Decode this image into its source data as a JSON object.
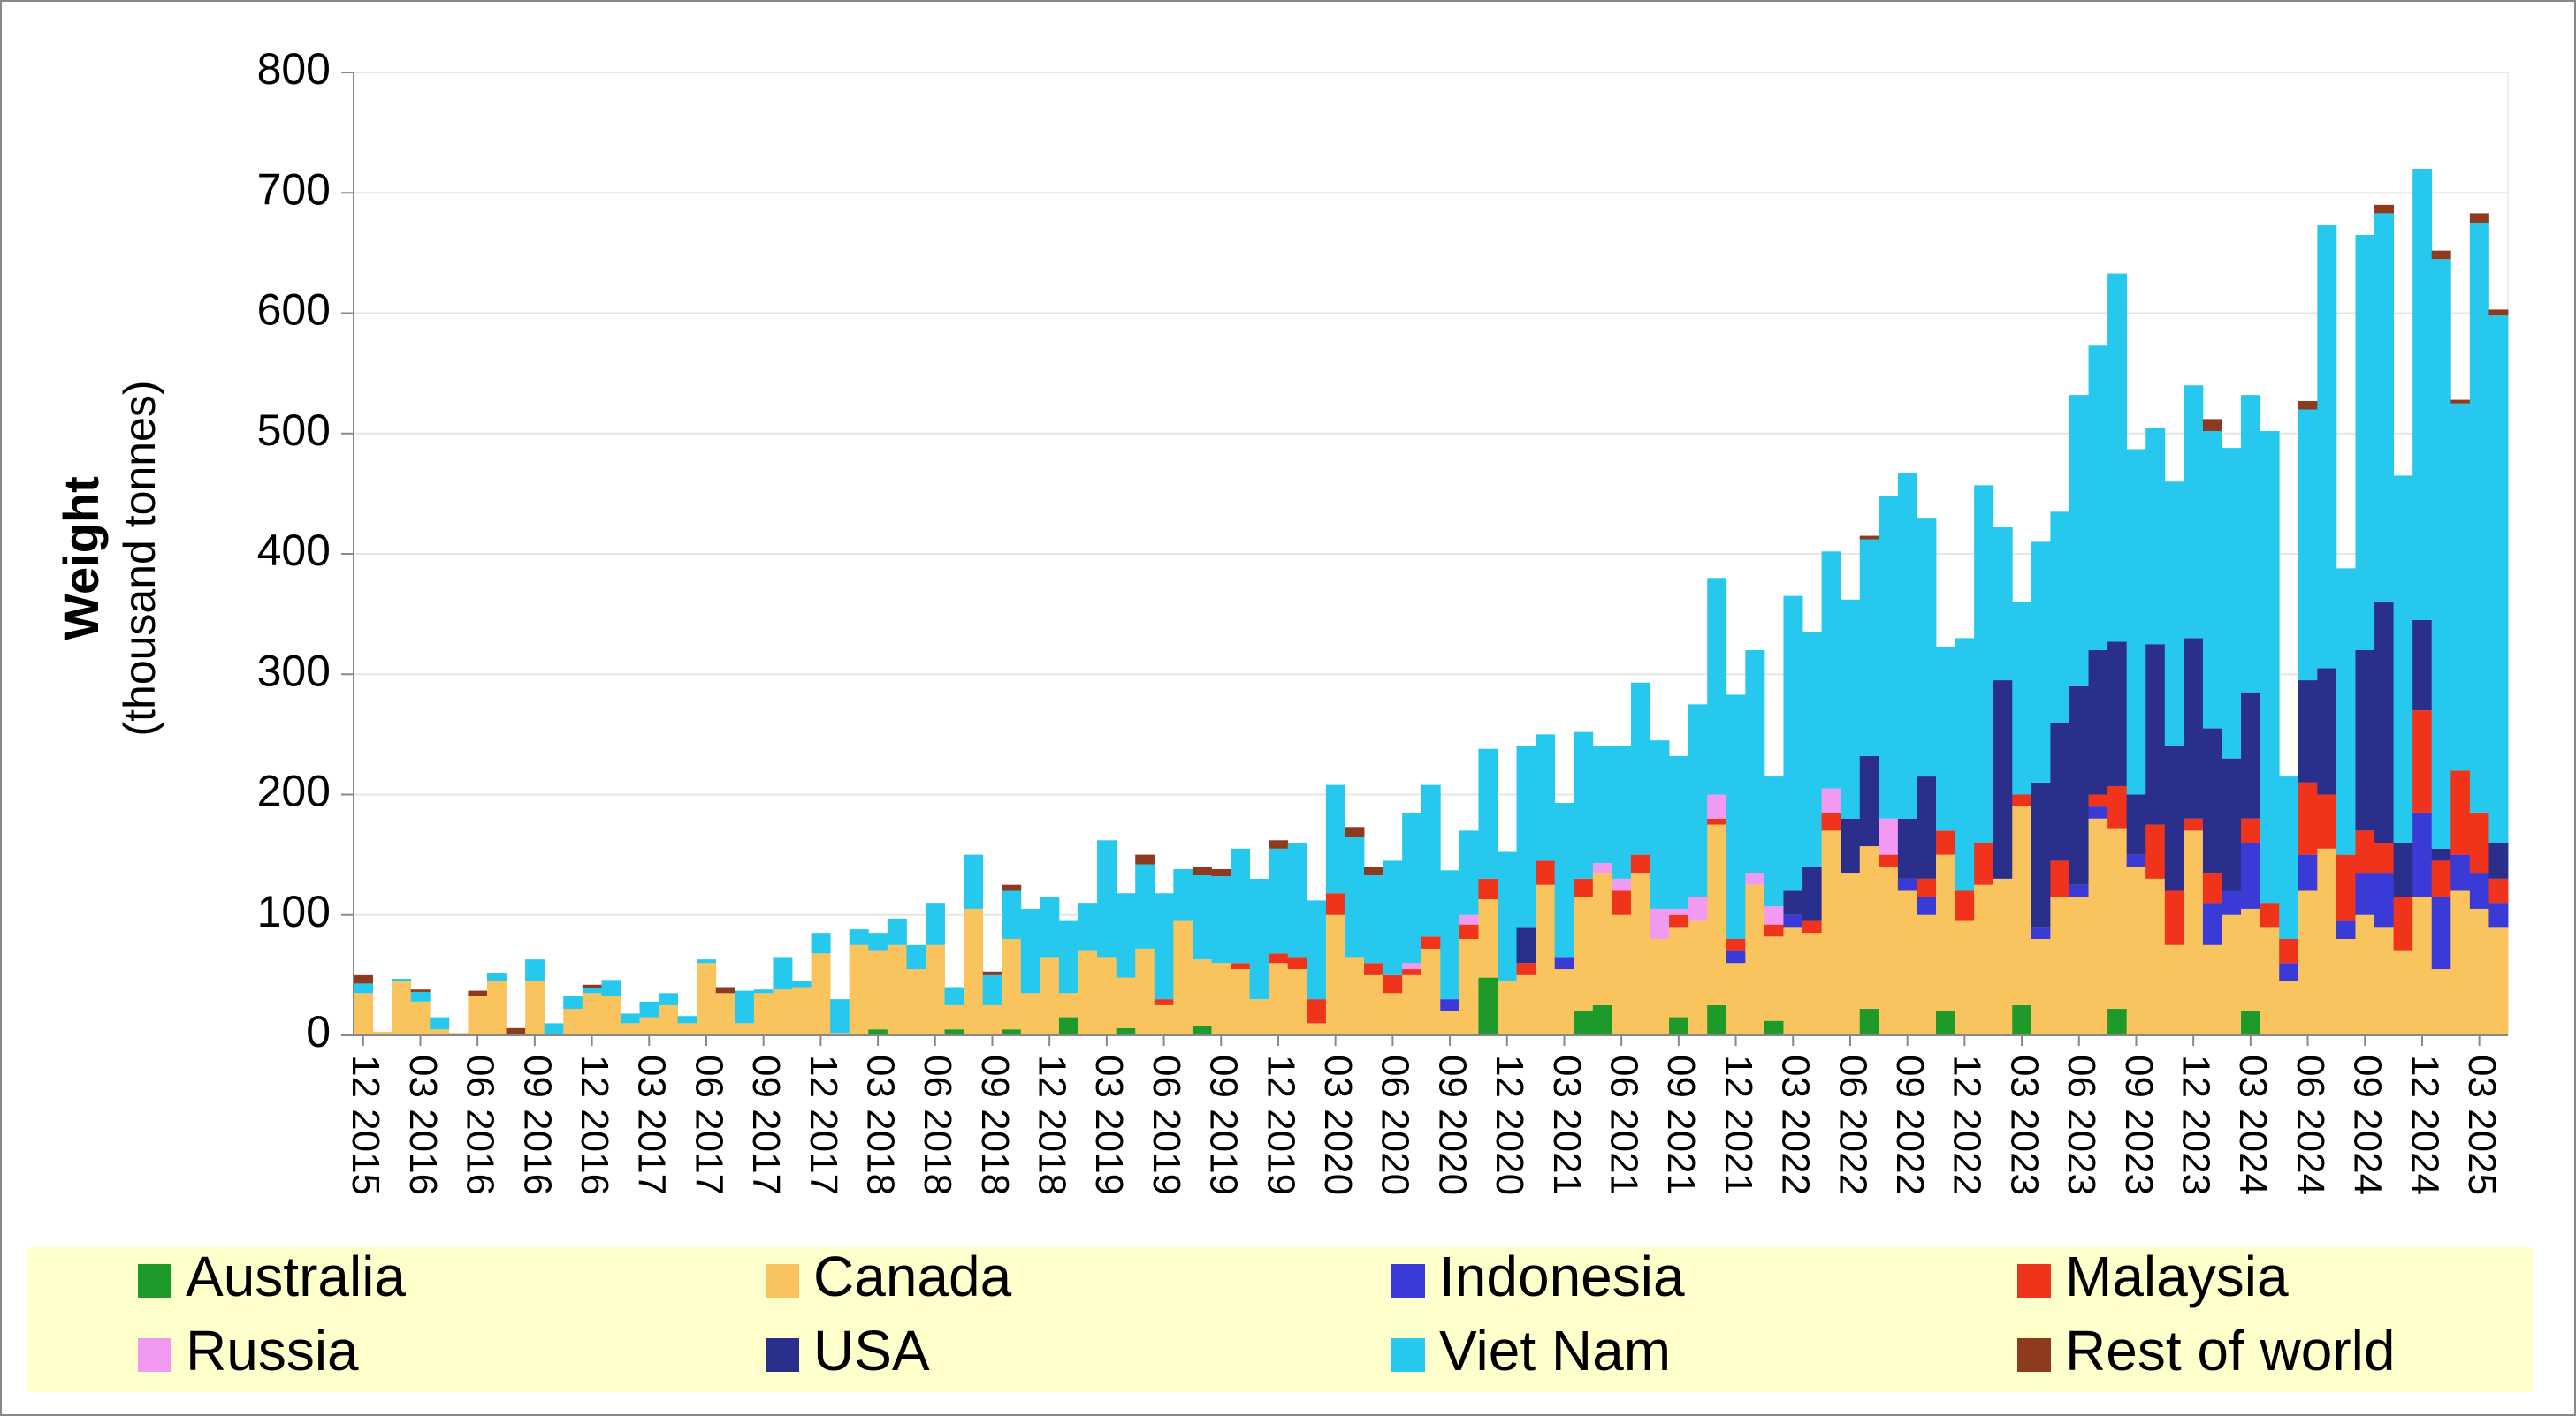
{
  "chart_data": {
    "type": "stacked_bar",
    "ylabel": "Weight",
    "ylabel_unit": "(thousand tonnes)",
    "ylim": [
      0,
      800
    ],
    "yticks": [
      0,
      100,
      200,
      300,
      400,
      500,
      600,
      700,
      800
    ],
    "grid": true,
    "legend": "bottom",
    "categories": [
      "12 2015",
      null,
      null,
      "03 2016",
      null,
      null,
      "06 2016",
      null,
      null,
      "09 2016",
      null,
      null,
      "12 2016",
      null,
      null,
      "03 2017",
      null,
      null,
      "06 2017",
      null,
      null,
      "09 2017",
      null,
      null,
      "12 2017",
      null,
      null,
      "03 2018",
      null,
      null,
      "06 2018",
      null,
      null,
      "09 2018",
      null,
      null,
      "12 2018",
      null,
      null,
      "03 2019",
      null,
      null,
      "06 2019",
      null,
      null,
      "09 2019",
      null,
      null,
      "12 2019",
      null,
      null,
      "03 2020",
      null,
      null,
      "06 2020",
      null,
      null,
      "09 2020",
      null,
      null,
      "12 2020",
      null,
      null,
      "03 2021",
      null,
      null,
      "06 2021",
      null,
      null,
      "09 2021",
      null,
      null,
      "12 2021",
      null,
      null,
      "03 2022",
      null,
      null,
      "06 2022",
      null,
      null,
      "09 2022",
      null,
      null,
      "12 2022",
      null,
      null,
      "03 2023",
      null,
      null,
      "06 2023",
      null,
      null,
      "09 2023",
      null,
      null,
      "12 2023",
      null,
      null,
      "03 2024",
      null,
      null,
      "06 2024",
      null,
      null,
      "09 2024",
      null,
      null,
      "12 2024",
      null,
      null,
      "03 2025",
      null
    ],
    "series": [
      {
        "name": "Australia",
        "color": "#1e9a2a",
        "values": [
          0,
          0,
          0,
          0,
          0,
          0,
          0,
          0,
          0,
          0,
          0,
          0,
          0,
          0,
          0,
          0,
          0,
          0,
          0,
          0,
          0,
          0,
          0,
          0,
          0,
          0,
          0,
          5,
          0,
          0,
          0,
          5,
          0,
          0,
          5,
          0,
          0,
          15,
          0,
          0,
          6,
          0,
          0,
          0,
          8,
          0,
          0,
          0,
          0,
          0,
          0,
          0,
          0,
          0,
          0,
          0,
          0,
          0,
          0,
          48,
          0,
          0,
          0,
          0,
          20,
          25,
          0,
          0,
          0,
          15,
          0,
          25,
          0,
          0,
          12,
          0,
          0,
          0,
          0,
          22,
          0,
          0,
          0,
          20,
          0,
          0,
          0,
          25,
          0,
          0,
          0,
          0,
          22,
          0,
          0,
          0,
          0,
          0,
          0,
          20,
          0,
          0,
          0,
          0,
          0,
          0,
          0,
          0,
          0,
          0,
          0,
          0,
          0
        ]
      },
      {
        "name": "Canada",
        "color": "#f9c45e",
        "values": [
          35,
          3,
          45,
          28,
          5,
          2,
          33,
          45,
          0,
          45,
          0,
          22,
          35,
          33,
          10,
          15,
          25,
          10,
          60,
          35,
          10,
          35,
          38,
          40,
          68,
          2,
          75,
          65,
          75,
          55,
          75,
          20,
          105,
          25,
          75,
          35,
          65,
          20,
          70,
          65,
          42,
          72,
          25,
          95,
          55,
          60,
          55,
          30,
          60,
          55,
          10,
          100,
          65,
          50,
          35,
          50,
          72,
          20,
          80,
          65,
          45,
          50,
          125,
          55,
          95,
          110,
          100,
          135,
          80,
          75,
          95,
          150,
          60,
          125,
          70,
          90,
          85,
          170,
          135,
          135,
          140,
          120,
          100,
          130,
          95,
          125,
          130,
          165,
          80,
          115,
          115,
          180,
          150,
          140,
          130,
          75,
          170,
          75,
          100,
          85,
          90,
          45,
          120,
          155,
          80,
          100,
          90,
          70,
          115,
          55,
          120,
          105,
          90
        ]
      },
      {
        "name": "Indonesia",
        "color": "#3a3ad6",
        "values": [
          0,
          0,
          0,
          0,
          0,
          0,
          0,
          0,
          0,
          0,
          0,
          0,
          0,
          0,
          0,
          0,
          0,
          0,
          0,
          0,
          0,
          0,
          0,
          0,
          0,
          0,
          0,
          0,
          0,
          0,
          0,
          0,
          0,
          0,
          0,
          0,
          0,
          0,
          0,
          0,
          0,
          0,
          0,
          0,
          0,
          0,
          0,
          0,
          0,
          0,
          0,
          0,
          0,
          0,
          0,
          0,
          0,
          10,
          0,
          0,
          0,
          0,
          0,
          10,
          0,
          0,
          0,
          0,
          0,
          0,
          0,
          0,
          10,
          0,
          0,
          10,
          0,
          0,
          0,
          0,
          0,
          10,
          15,
          0,
          0,
          0,
          0,
          0,
          10,
          0,
          10,
          10,
          0,
          10,
          0,
          0,
          0,
          35,
          20,
          55,
          0,
          15,
          30,
          0,
          15,
          35,
          45,
          0,
          70,
          60,
          30,
          30,
          20
        ]
      },
      {
        "name": "Malaysia",
        "color": "#f0341c",
        "values": [
          0,
          0,
          0,
          0,
          0,
          0,
          0,
          0,
          0,
          0,
          0,
          0,
          0,
          0,
          0,
          0,
          0,
          0,
          0,
          0,
          0,
          0,
          0,
          0,
          0,
          0,
          0,
          0,
          0,
          0,
          0,
          0,
          0,
          0,
          0,
          0,
          0,
          0,
          0,
          0,
          0,
          0,
          5,
          0,
          0,
          0,
          5,
          0,
          8,
          10,
          20,
          18,
          0,
          10,
          15,
          5,
          10,
          0,
          12,
          17,
          0,
          10,
          20,
          0,
          15,
          0,
          20,
          15,
          0,
          10,
          0,
          5,
          10,
          0,
          10,
          0,
          10,
          15,
          0,
          0,
          10,
          0,
          15,
          20,
          25,
          35,
          0,
          10,
          0,
          30,
          0,
          10,
          35,
          0,
          45,
          45,
          10,
          25,
          0,
          20,
          20,
          20,
          60,
          45,
          55,
          35,
          25,
          45,
          85,
          30,
          70,
          50,
          20
        ]
      },
      {
        "name": "Russia",
        "color": "#f29af2",
        "values": [
          0,
          0,
          0,
          0,
          0,
          0,
          0,
          0,
          0,
          0,
          0,
          0,
          0,
          0,
          0,
          0,
          0,
          0,
          0,
          0,
          0,
          0,
          0,
          0,
          0,
          0,
          0,
          0,
          0,
          0,
          0,
          0,
          0,
          0,
          0,
          0,
          0,
          0,
          0,
          0,
          0,
          0,
          0,
          0,
          0,
          0,
          0,
          0,
          0,
          0,
          0,
          0,
          0,
          0,
          0,
          5,
          0,
          0,
          8,
          0,
          0,
          0,
          0,
          0,
          0,
          8,
          10,
          0,
          25,
          5,
          20,
          20,
          0,
          10,
          15,
          0,
          0,
          20,
          0,
          0,
          30,
          0,
          0,
          0,
          0,
          0,
          0,
          0,
          0,
          0,
          0,
          0,
          0,
          0,
          0,
          0,
          0,
          0,
          0,
          0,
          0,
          0,
          0,
          0,
          0,
          0,
          0,
          0,
          0,
          0,
          0,
          0,
          0
        ]
      },
      {
        "name": "USA",
        "color": "#2b2f8c",
        "values": [
          0,
          0,
          0,
          0,
          0,
          0,
          0,
          0,
          0,
          0,
          0,
          0,
          0,
          0,
          0,
          0,
          0,
          0,
          0,
          0,
          0,
          0,
          0,
          0,
          0,
          0,
          0,
          0,
          0,
          0,
          0,
          0,
          0,
          0,
          0,
          0,
          0,
          0,
          0,
          0,
          0,
          0,
          0,
          0,
          0,
          0,
          0,
          0,
          0,
          0,
          0,
          0,
          0,
          0,
          0,
          0,
          0,
          0,
          0,
          0,
          0,
          30,
          0,
          0,
          0,
          0,
          0,
          0,
          0,
          0,
          0,
          0,
          0,
          0,
          0,
          20,
          45,
          0,
          45,
          75,
          0,
          50,
          85,
          0,
          0,
          0,
          165,
          0,
          120,
          115,
          165,
          120,
          120,
          50,
          150,
          120,
          150,
          120,
          110,
          105,
          0,
          0,
          85,
          105,
          0,
          150,
          200,
          45,
          75,
          10,
          0,
          0,
          30
        ]
      },
      {
        "name": "Viet Nam",
        "color": "#26c8ee",
        "values": [
          8,
          0,
          2,
          8,
          10,
          0,
          0,
          7,
          0,
          18,
          10,
          11,
          4,
          13,
          8,
          13,
          10,
          6,
          3,
          0,
          27,
          3,
          27,
          5,
          17,
          28,
          13,
          15,
          22,
          20,
          35,
          15,
          45,
          25,
          40,
          70,
          50,
          60,
          40,
          97,
          70,
          70,
          88,
          43,
          70,
          72,
          95,
          100,
          87,
          95,
          82,
          90,
          100,
          73,
          95,
          125,
          126,
          107,
          70,
          108,
          108,
          150,
          105,
          128,
          122,
          97,
          110,
          143,
          140,
          127,
          160,
          180,
          203,
          185,
          108,
          245,
          195,
          197,
          182,
          180,
          268,
          287,
          215,
          153,
          210,
          297,
          127,
          160,
          200,
          175,
          242,
          253,
          306,
          287,
          180,
          220,
          210,
          247,
          258,
          247,
          392,
          135,
          225,
          368,
          238,
          345,
          323,
          305,
          375,
          490,
          305,
          490,
          438
        ]
      },
      {
        "name": "Rest of world",
        "color": "#8e3a1e",
        "values": [
          7,
          0,
          0,
          2,
          0,
          0,
          4,
          0,
          6,
          0,
          0,
          0,
          3,
          0,
          0,
          0,
          0,
          0,
          0,
          5,
          0,
          0,
          0,
          0,
          0,
          0,
          0,
          0,
          0,
          0,
          0,
          0,
          0,
          3,
          5,
          0,
          0,
          0,
          0,
          0,
          0,
          8,
          0,
          0,
          7,
          6,
          0,
          0,
          7,
          0,
          0,
          0,
          8,
          7,
          0,
          0,
          0,
          0,
          0,
          0,
          0,
          0,
          0,
          0,
          0,
          0,
          0,
          0,
          0,
          0,
          0,
          0,
          0,
          0,
          0,
          0,
          0,
          0,
          0,
          3,
          0,
          0,
          0,
          0,
          0,
          0,
          0,
          0,
          0,
          0,
          0,
          0,
          0,
          0,
          0,
          0,
          0,
          10,
          0,
          0,
          0,
          0,
          7,
          0,
          0,
          0,
          7,
          0,
          0,
          7,
          3,
          8,
          5
        ]
      }
    ]
  }
}
